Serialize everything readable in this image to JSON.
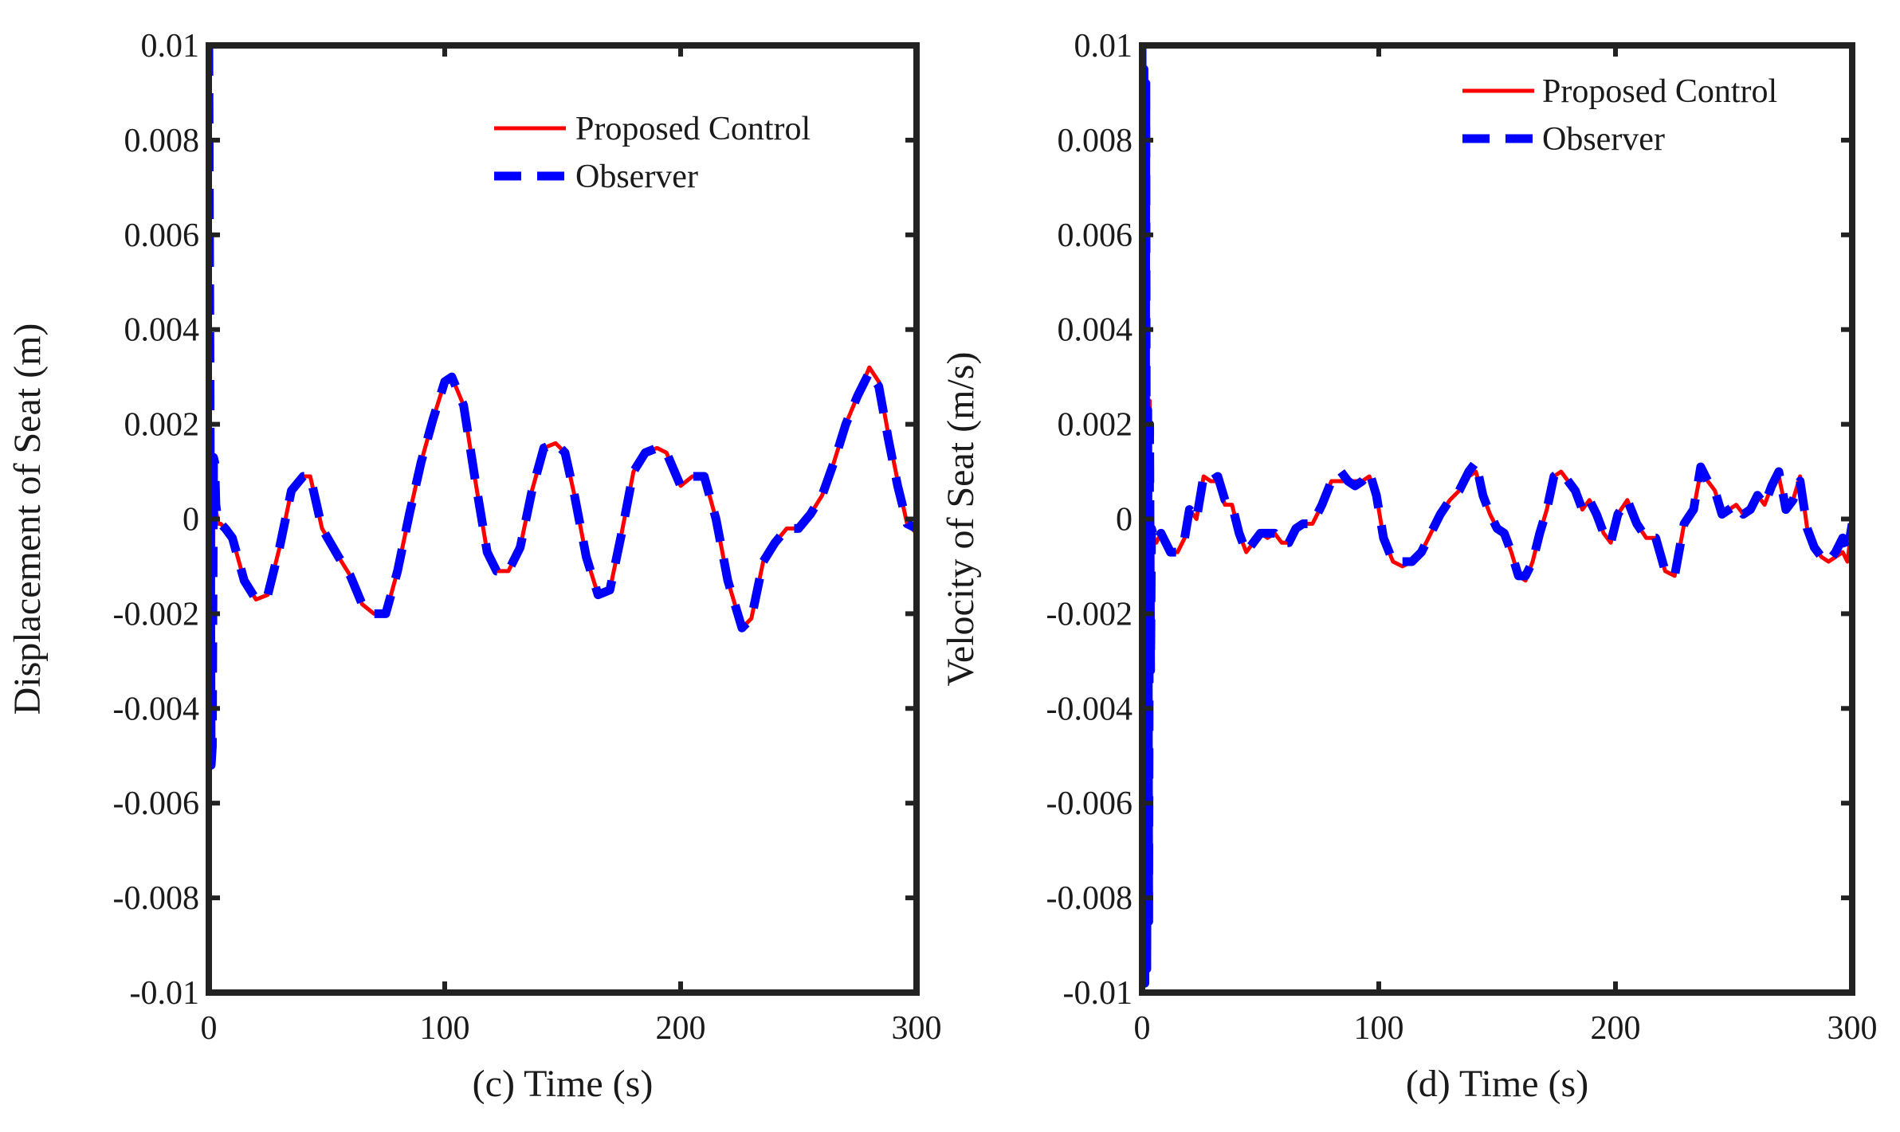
{
  "chart_data": [
    {
      "type": "line",
      "xlabel": "(c) Time (s)",
      "ylabel": "Displacement of Seat (m)",
      "xlim": [
        0,
        300
      ],
      "ylim": [
        -0.01,
        0.01
      ],
      "xticks": [
        "0",
        "100",
        "200",
        "300"
      ],
      "yticks": [
        "0.01",
        "0.008",
        "0.006",
        "0.004",
        "0.002",
        "0",
        "-0.002",
        "-0.004",
        "-0.006",
        "-0.008",
        "-0.01"
      ],
      "grid": false,
      "legend_position": "top-right",
      "series": [
        {
          "name": "Proposed Control",
          "color": "#ff0000",
          "style": "solid",
          "x": [
            0,
            0.5,
            1,
            1.5,
            2,
            2.5,
            3,
            4,
            5,
            7,
            10,
            15,
            20,
            25,
            30,
            35,
            40,
            43,
            48,
            55,
            60,
            65,
            70,
            75,
            80,
            85,
            90,
            95,
            100,
            103,
            108,
            113,
            118,
            122,
            127,
            132,
            137,
            142,
            147,
            151,
            155,
            160,
            165,
            170,
            175,
            180,
            185,
            190,
            194,
            200,
            205,
            210,
            215,
            220,
            226,
            230,
            235,
            240,
            245,
            250,
            255,
            260,
            265,
            270,
            275,
            280,
            284,
            288,
            292,
            296,
            300
          ],
          "y": [
            0.0095,
            0.002,
            -0.004,
            -0.0045,
            0.0005,
            0.001,
            0.0002,
            -0.0001,
            -0.0001,
            -0.0002,
            -0.0004,
            -0.0013,
            -0.0017,
            -0.0016,
            -0.0006,
            0.0006,
            0.0009,
            0.0009,
            -0.0002,
            -0.0008,
            -0.0012,
            -0.0018,
            -0.002,
            -0.002,
            -0.0011,
            0.0001,
            0.0012,
            0.0021,
            0.0029,
            0.003,
            0.0024,
            0.0008,
            -0.0007,
            -0.0011,
            -0.0011,
            -0.0006,
            0.0006,
            0.0015,
            0.0016,
            0.0014,
            0.0005,
            -0.0008,
            -0.0016,
            -0.0015,
            -0.0003,
            0.001,
            0.0014,
            0.0015,
            0.0014,
            0.0007,
            0.0009,
            0.0009,
            0.0,
            -0.0013,
            -0.0023,
            -0.0021,
            -0.0009,
            -0.0005,
            -0.0002,
            -0.0002,
            0.0001,
            0.0005,
            0.0012,
            0.002,
            0.0026,
            0.0032,
            0.0029,
            0.0018,
            0.0008,
            -0.0001,
            -0.0003
          ]
        },
        {
          "name": "Observer",
          "color": "#0000ff",
          "style": "dashed",
          "x": [
            0,
            0.5,
            1,
            1.5,
            2,
            2.5,
            3,
            4,
            5,
            7,
            10,
            15,
            20,
            25,
            30,
            35,
            40,
            43,
            48,
            55,
            60,
            65,
            70,
            75,
            80,
            85,
            90,
            95,
            100,
            103,
            108,
            113,
            118,
            122,
            127,
            132,
            137,
            142,
            147,
            151,
            155,
            160,
            165,
            170,
            175,
            180,
            185,
            190,
            194,
            200,
            205,
            210,
            215,
            220,
            226,
            230,
            235,
            240,
            245,
            250,
            255,
            260,
            265,
            270,
            275,
            280,
            284,
            288,
            292,
            296,
            300
          ],
          "y": [
            0.01,
            0.003,
            -0.0052,
            -0.0048,
            0.0013,
            0.0012,
            0.0003,
            -0.0001,
            -0.0001,
            -0.0002,
            -0.0004,
            -0.0013,
            -0.0017,
            -0.0016,
            -0.0006,
            0.0006,
            0.0009,
            0.0009,
            -0.0002,
            -0.0008,
            -0.0012,
            -0.0018,
            -0.002,
            -0.002,
            -0.0011,
            0.0001,
            0.0012,
            0.0021,
            0.0029,
            0.003,
            0.0024,
            0.0008,
            -0.0007,
            -0.0011,
            -0.0011,
            -0.0006,
            0.0006,
            0.0015,
            0.0016,
            0.0014,
            0.0005,
            -0.0008,
            -0.0016,
            -0.0015,
            -0.0003,
            0.001,
            0.0014,
            0.0015,
            0.0014,
            0.0007,
            0.0009,
            0.0009,
            0.0,
            -0.0013,
            -0.0023,
            -0.0021,
            -0.0009,
            -0.0005,
            -0.0002,
            -0.0002,
            0.0001,
            0.0005,
            0.0012,
            0.002,
            0.0026,
            0.0031,
            0.0028,
            0.0017,
            0.0007,
            -0.0001,
            -0.0002
          ]
        }
      ]
    },
    {
      "type": "line",
      "xlabel": "(d) Time (s)",
      "ylabel": "Velocity of Seat (m/s)",
      "xlim": [
        0,
        300
      ],
      "ylim": [
        -0.01,
        0.01
      ],
      "xticks": [
        "0",
        "100",
        "200",
        "300"
      ],
      "yticks": [
        "0.01",
        "0.008",
        "0.006",
        "0.004",
        "0.002",
        "0",
        "-0.002",
        "-0.004",
        "-0.006",
        "-0.008",
        "-0.01"
      ],
      "grid": false,
      "legend_position": "top-right",
      "series": [
        {
          "name": "Proposed Control",
          "color": "#ff0000",
          "style": "solid",
          "x": [
            0,
            0.4,
            0.8,
            1.2,
            1.6,
            2,
            2.4,
            2.8,
            3.2,
            3.6,
            4,
            5,
            6,
            8,
            10,
            12,
            15,
            18,
            20,
            23,
            26,
            29,
            32,
            35,
            38,
            41,
            44,
            47,
            50,
            53,
            56,
            59,
            62,
            65,
            68,
            72,
            76,
            80,
            84,
            87,
            90,
            93,
            96,
            99,
            102,
            106,
            110,
            114,
            118,
            122,
            126,
            130,
            134,
            138,
            141,
            144,
            147,
            150,
            153,
            156,
            159,
            162,
            165,
            168,
            171,
            174,
            177,
            180,
            183,
            186,
            189,
            192,
            195,
            198,
            201,
            205,
            209,
            213,
            217,
            221,
            225,
            229,
            233,
            236,
            239,
            242,
            245,
            248,
            251,
            254,
            257,
            260,
            263,
            266,
            269,
            272,
            275,
            278,
            281,
            284,
            287,
            290,
            293,
            296,
            298,
            300
          ],
          "y": [
            0.009,
            -0.009,
            0.008,
            -0.0095,
            0.0085,
            -0.0092,
            0.002,
            -0.008,
            0.0025,
            -0.003,
            -0.0002,
            -0.0004,
            -0.0005,
            -0.0003,
            -0.0005,
            -0.0007,
            -0.0007,
            -0.0004,
            0.0002,
            0.0,
            0.0009,
            0.0008,
            0.0008,
            0.0003,
            0.0003,
            -0.0003,
            -0.0007,
            -0.0005,
            -0.0003,
            -0.0004,
            -0.0003,
            -0.0005,
            -0.0005,
            -0.0002,
            -0.0001,
            -0.0001,
            0.0003,
            0.0008,
            0.0008,
            0.0008,
            0.0008,
            0.0008,
            0.0009,
            0.0005,
            -0.0004,
            -0.0009,
            -0.001,
            -0.0009,
            -0.0007,
            -0.0003,
            0.0001,
            0.0004,
            0.0006,
            0.0009,
            0.001,
            0.0005,
            0.0001,
            -0.0002,
            -0.0003,
            -0.0007,
            -0.0012,
            -0.0013,
            -0.0009,
            -0.0003,
            0.0002,
            0.0009,
            0.001,
            0.0008,
            0.0006,
            0.0002,
            0.0004,
            0.0001,
            -0.0003,
            -0.0005,
            0.0001,
            0.0004,
            -0.0001,
            -0.0004,
            -0.0004,
            -0.0011,
            -0.0012,
            -0.0001,
            0.0002,
            0.001,
            0.0008,
            0.0006,
            0.0001,
            0.0002,
            0.0003,
            0.0001,
            0.0002,
            0.0005,
            0.0003,
            0.0007,
            0.0009,
            0.0002,
            0.0004,
            0.0009,
            -0.0002,
            -0.0006,
            -0.0008,
            -0.0009,
            -0.0008,
            -0.0007,
            -0.0009,
            -0.0001
          ]
        },
        {
          "name": "Observer",
          "color": "#0000ff",
          "style": "dashed",
          "x": [
            0,
            0.4,
            0.8,
            1.2,
            1.6,
            2,
            2.4,
            2.8,
            3.2,
            3.6,
            4,
            5,
            6,
            8,
            10,
            12,
            15,
            18,
            20,
            23,
            26,
            29,
            32,
            35,
            38,
            41,
            44,
            47,
            50,
            53,
            56,
            59,
            62,
            65,
            68,
            72,
            76,
            80,
            84,
            87,
            90,
            93,
            96,
            99,
            102,
            106,
            110,
            114,
            118,
            122,
            126,
            130,
            134,
            138,
            141,
            144,
            147,
            150,
            153,
            156,
            159,
            162,
            165,
            168,
            171,
            174,
            177,
            180,
            183,
            186,
            189,
            192,
            195,
            198,
            201,
            205,
            209,
            213,
            217,
            221,
            225,
            229,
            233,
            236,
            239,
            242,
            245,
            248,
            251,
            254,
            257,
            260,
            263,
            266,
            269,
            272,
            275,
            278,
            281,
            284,
            287,
            290,
            293,
            296,
            298,
            300
          ],
          "y": [
            0.01,
            -0.01,
            0.0095,
            -0.0098,
            0.0092,
            -0.0095,
            0.0023,
            -0.0085,
            0.002,
            -0.0032,
            -0.0002,
            -0.0004,
            -0.0005,
            -0.0003,
            -0.0005,
            -0.0007,
            -0.0007,
            -0.0004,
            0.0002,
            0.0,
            0.0009,
            0.0008,
            0.0009,
            0.0004,
            0.0003,
            -0.0003,
            -0.0007,
            -0.0005,
            -0.0003,
            -0.0003,
            -0.0003,
            -0.0005,
            -0.0005,
            -0.0002,
            -0.0001,
            -0.0001,
            0.0003,
            0.0008,
            0.001,
            0.0008,
            0.0007,
            0.0008,
            0.001,
            0.0005,
            -0.0004,
            -0.0009,
            -0.0009,
            -0.0009,
            -0.0007,
            -0.0003,
            0.0001,
            0.0004,
            0.0006,
            0.001,
            0.0012,
            0.0005,
            0.0001,
            -0.0002,
            -0.0003,
            -0.0007,
            -0.0012,
            -0.0012,
            -0.0009,
            -0.0003,
            0.0002,
            0.0009,
            0.001,
            0.0008,
            0.0006,
            0.0002,
            0.0004,
            0.0001,
            -0.0003,
            -0.0005,
            0.0001,
            0.0004,
            -0.0001,
            -0.0004,
            -0.0004,
            -0.0011,
            -0.0012,
            -0.0001,
            0.0002,
            0.0011,
            0.0008,
            0.0006,
            0.0001,
            0.0002,
            0.0003,
            0.0001,
            0.0002,
            0.0005,
            0.0003,
            0.0007,
            0.001,
            0.0002,
            0.0004,
            0.0008,
            -0.0002,
            -0.0006,
            -0.0008,
            -0.0009,
            -0.0007,
            -0.0004,
            -0.0007,
            -0.0001
          ]
        }
      ]
    }
  ]
}
